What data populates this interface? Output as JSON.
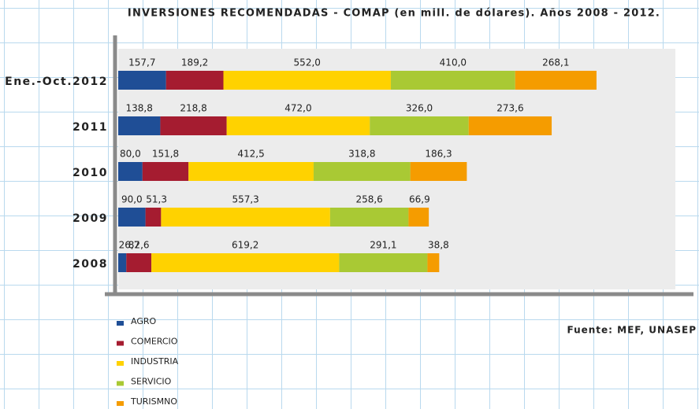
{
  "chart_data": {
    "type": "stacked_barh",
    "title": "INVERSIONES RECOMENDADAS - COMAP (en mill. de dólares). Años 2008 - 2012.",
    "source": "Fuente: MEF, UNASEP",
    "categories": [
      "Ene.-Oct.2012",
      "2011",
      "2010",
      "2009",
      "2008"
    ],
    "xlim": [
      0,
      1837
    ],
    "series": [
      {
        "name": "AGRO",
        "color": "#1f4e96",
        "values": [
          157.7,
          138.8,
          80.0,
          90.0,
          26.7
        ],
        "value_labels": [
          "157,7",
          "138,8",
          "80,0",
          "90,0",
          "26,7"
        ]
      },
      {
        "name": "COMERCIO",
        "color": "#a51c30",
        "values": [
          189.2,
          218.8,
          151.8,
          51.3,
          82.6
        ],
        "value_labels": [
          "189,2",
          "218,8",
          "151,8",
          "51,3",
          "82,6"
        ]
      },
      {
        "name": "INDUSTRIA",
        "color": "#ffd200",
        "values": [
          552.0,
          472.0,
          412.5,
          557.3,
          619.2
        ],
        "value_labels": [
          "552,0",
          "472,0",
          "412,5",
          "557,3",
          "619,2"
        ]
      },
      {
        "name": "SERVICIO",
        "color": "#a9c934",
        "values": [
          410.0,
          326.0,
          318.8,
          258.6,
          291.1
        ],
        "value_labels": [
          "410,0",
          "326,0",
          "318,8",
          "258,6",
          "291,1"
        ]
      },
      {
        "name": "TURISMNO",
        "color": "#f59c00",
        "values": [
          268.1,
          273.6,
          186.3,
          66.9,
          38.8
        ],
        "value_labels": [
          "268,1",
          "273,6",
          "186,3",
          "66,9",
          "38,8"
        ]
      }
    ]
  }
}
